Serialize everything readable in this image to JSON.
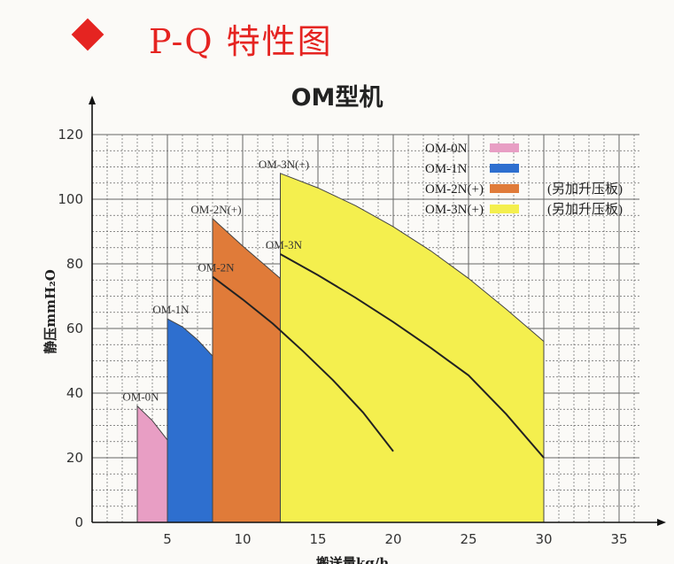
{
  "header": {
    "title": "P-Q 特性图",
    "bullet_color": "#e52421"
  },
  "chart_data": {
    "type": "area",
    "title": "OM型机",
    "ylabel": "静压mmH₂O",
    "xlabel": "搬送量kg/h",
    "xlim": [
      0,
      36
    ],
    "ylim": [
      0,
      120
    ],
    "x_ticks": [
      "5",
      "10",
      "15",
      "20",
      "25",
      "30",
      "35"
    ],
    "y_ticks": [
      "0",
      "20",
      "40",
      "60",
      "80",
      "100",
      "120"
    ],
    "grid": true,
    "legend_position": "top-right",
    "legend": [
      {
        "label": "OM-0N",
        "note": "",
        "color": "#e89ec4"
      },
      {
        "label": "OM-1N",
        "note": "",
        "color": "#2e6fcf"
      },
      {
        "label": "OM-2N(+)",
        "note": "(另加升压板)",
        "color": "#e07b39"
      },
      {
        "label": "OM-3N(+)",
        "note": "(另加升压板)",
        "color": "#f4ef4e"
      }
    ],
    "series": [
      {
        "name": "OM-0N",
        "color": "#e89ec4",
        "x": [
          3.0,
          4.0,
          5.0,
          6.0,
          7.0,
          7.0
        ],
        "y": [
          36,
          31.5,
          25.5,
          18.5,
          10,
          0
        ]
      },
      {
        "name": "OM-1N",
        "color": "#2e6fcf",
        "x": [
          5.0,
          6.0,
          7.0,
          8.0,
          9.0,
          10.0,
          10.0
        ],
        "y": [
          63,
          60.5,
          56.5,
          51.5,
          45.5,
          39,
          0
        ]
      },
      {
        "name": "OM-2N(+)",
        "color": "#e07b39",
        "x": [
          8.0,
          10.0,
          12.0,
          14.0,
          16.0,
          18.0,
          20.0,
          20.0
        ],
        "y": [
          94,
          85.5,
          77.5,
          69.5,
          61.5,
          52.5,
          42,
          0
        ]
      },
      {
        "name": "OM-2N",
        "x": [
          8.0,
          10.0,
          12.0,
          14.0,
          16.0,
          18.0,
          20.0
        ],
        "y": [
          76,
          69,
          61.5,
          53,
          44,
          34,
          22
        ]
      },
      {
        "name": "OM-3N(+)",
        "color": "#f4ef4e",
        "x": [
          12.5,
          15.0,
          17.5,
          20.0,
          22.5,
          25.0,
          27.5,
          30.0,
          30.0
        ],
        "y": [
          108,
          103.5,
          98,
          91.5,
          84,
          75.5,
          66,
          56,
          0
        ]
      },
      {
        "name": "OM-3N",
        "x": [
          12.5,
          15.0,
          17.5,
          20.0,
          22.5,
          25.0,
          27.5,
          30.0
        ],
        "y": [
          83,
          76.5,
          69.5,
          62,
          54,
          45.5,
          33.5,
          20
        ]
      }
    ],
    "curve_labels": [
      {
        "text": "OM-0N",
        "x": 3.0,
        "y": 36
      },
      {
        "text": "OM-1N",
        "x": 5.0,
        "y": 63
      },
      {
        "text": "OM-2N(+)",
        "x": 8.0,
        "y": 94
      },
      {
        "text": "OM-2N",
        "x": 8.0,
        "y": 76
      },
      {
        "text": "OM-3N(+)",
        "x": 12.5,
        "y": 108
      },
      {
        "text": "OM-3N",
        "x": 12.5,
        "y": 83
      }
    ]
  }
}
